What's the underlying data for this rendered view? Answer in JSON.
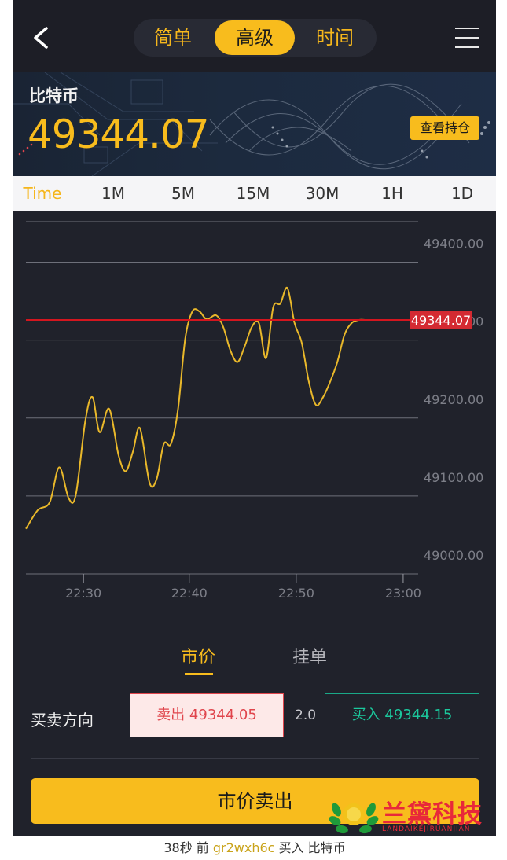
{
  "header": {
    "segments": [
      "简单",
      "高级",
      "时间"
    ],
    "active_segment": "高级"
  },
  "banner": {
    "coin_name": "比特币",
    "price": "49344.07",
    "hold_button": "查看持仓"
  },
  "time_tabs": [
    "Time",
    "1M",
    "5M",
    "15M",
    "30M",
    "1H",
    "1D"
  ],
  "active_time_tab": "Time",
  "chart_data": {
    "type": "line",
    "x_ticks": [
      "22:30",
      "22:40",
      "22:50",
      "23:00"
    ],
    "y_ticks": [
      "49400.00",
      "49300.00",
      "49200.00",
      "49100.00",
      "49000.00"
    ],
    "ylim": [
      49000,
      49400
    ],
    "current_price_label": "49344.07",
    "current_price": 49344.07,
    "series": [
      {
        "x": [
          0,
          5,
          10,
          14,
          18,
          21,
          25,
          28,
          31,
          35,
          39,
          42,
          45,
          48,
          52,
          55,
          58,
          61,
          64,
          67,
          70,
          73,
          76,
          80,
          83,
          86,
          89,
          92,
          95,
          98,
          101,
          104,
          107,
          110,
          113,
          116,
          119,
          122,
          125,
          128,
          131,
          134,
          137,
          140,
          143,
          146,
          149,
          152,
          155,
          158
        ],
        "y": [
          49076,
          49100,
          49110,
          49155,
          49115,
          49120,
          49215,
          49245,
          49200,
          49230,
          49170,
          49150,
          49175,
          49205,
          49135,
          49140,
          49185,
          49185,
          49230,
          49320,
          49355,
          49355,
          49345,
          49350,
          49335,
          49305,
          49290,
          49310,
          49335,
          49340,
          49295,
          49360,
          49365,
          49385,
          49340,
          49315,
          49265,
          49235,
          49245,
          49265,
          49290,
          49325,
          49340,
          49344,
          49344,
          49344,
          49344,
          49344,
          49344,
          49344
        ]
      }
    ]
  },
  "order": {
    "tab_market": "市价",
    "tab_limit": "挂单",
    "direction_label": "买卖方向",
    "sell_label": "卖出 49344.05",
    "spread": "2.0",
    "buy_label": "买入 49344.15",
    "action_button": "市价卖出"
  },
  "ticker": {
    "time_ago": "38秒 前",
    "user": "gr2wxh6c",
    "action": "买入 比特币"
  },
  "watermark": {
    "name": "兰黛科技",
    "sub": "LANDAIKEJIRUANJIAN"
  }
}
